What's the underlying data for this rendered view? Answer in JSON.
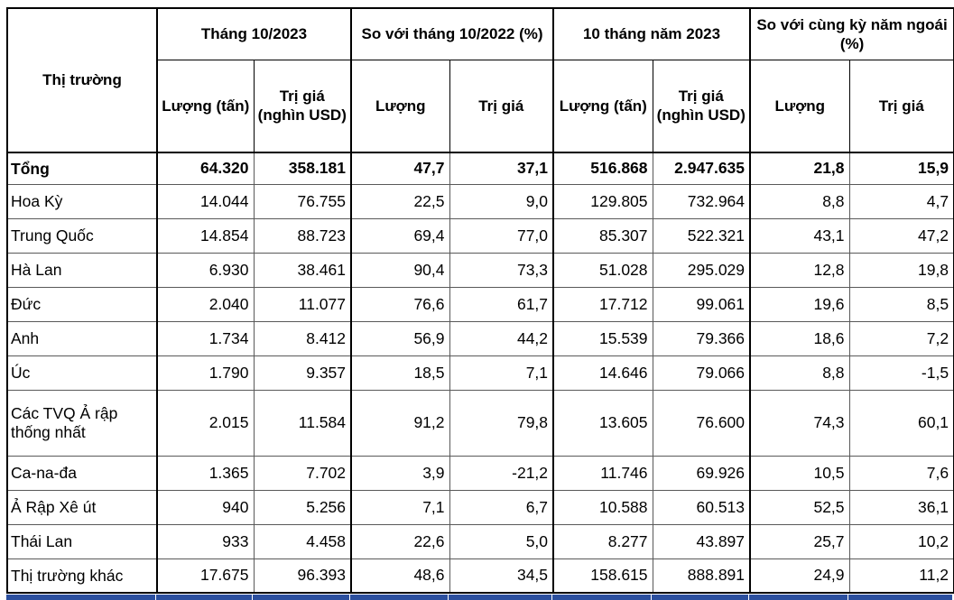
{
  "table": {
    "header": {
      "market_label": "Thị trường",
      "groups": [
        {
          "label": "Tháng 10/2023",
          "cols": [
            "Lượng (tấn)",
            "Trị giá (nghìn USD)"
          ]
        },
        {
          "label": "So với tháng 10/2022 (%)",
          "cols": [
            "Lượng",
            "Trị giá"
          ]
        },
        {
          "label": "10 tháng năm 2023",
          "cols": [
            "Lượng (tấn)",
            "Trị giá (nghìn USD)"
          ]
        },
        {
          "label": "So với cùng kỳ năm ngoái (%)",
          "cols": [
            "Lượng",
            "Trị giá"
          ]
        }
      ]
    },
    "rows": [
      {
        "market": "Tổng",
        "bold": true,
        "tall": false,
        "values": [
          "64.320",
          "358.181",
          "47,7",
          "37,1",
          "516.868",
          "2.947.635",
          "21,8",
          "15,9"
        ]
      },
      {
        "market": "Hoa Kỳ",
        "bold": false,
        "tall": false,
        "values": [
          "14.044",
          "76.755",
          "22,5",
          "9,0",
          "129.805",
          "732.964",
          "8,8",
          "4,7"
        ]
      },
      {
        "market": "Trung Quốc",
        "bold": false,
        "tall": false,
        "values": [
          "14.854",
          "88.723",
          "69,4",
          "77,0",
          "85.307",
          "522.321",
          "43,1",
          "47,2"
        ]
      },
      {
        "market": "Hà Lan",
        "bold": false,
        "tall": false,
        "values": [
          "6.930",
          "38.461",
          "90,4",
          "73,3",
          "51.028",
          "295.029",
          "12,8",
          "19,8"
        ]
      },
      {
        "market": "Đức",
        "bold": false,
        "tall": false,
        "values": [
          "2.040",
          "11.077",
          "76,6",
          "61,7",
          "17.712",
          "99.061",
          "19,6",
          "8,5"
        ]
      },
      {
        "market": "Anh",
        "bold": false,
        "tall": false,
        "values": [
          "1.734",
          "8.412",
          "56,9",
          "44,2",
          "15.539",
          "79.366",
          "18,6",
          "7,2"
        ]
      },
      {
        "market": "Úc",
        "bold": false,
        "tall": false,
        "values": [
          "1.790",
          "9.357",
          "18,5",
          "7,1",
          "14.646",
          "79.066",
          "8,8",
          "-1,5"
        ]
      },
      {
        "market": "Các TVQ Ả rập thống nhất",
        "bold": false,
        "tall": true,
        "values": [
          "2.015",
          "11.584",
          "91,2",
          "79,8",
          "13.605",
          "76.600",
          "74,3",
          "60,1"
        ]
      },
      {
        "market": "Ca-na-đa",
        "bold": false,
        "tall": false,
        "values": [
          "1.365",
          "7.702",
          "3,9",
          "-21,2",
          "11.746",
          "69.926",
          "10,5",
          "7,6"
        ]
      },
      {
        "market": "Ả Rập Xê út",
        "bold": false,
        "tall": false,
        "values": [
          "940",
          "5.256",
          "7,1",
          "6,7",
          "10.588",
          "60.513",
          "52,5",
          "36,1"
        ]
      },
      {
        "market": "Thái Lan",
        "bold": false,
        "tall": false,
        "values": [
          "933",
          "4.458",
          "22,6",
          "5,0",
          "8.277",
          "43.897",
          "25,7",
          "10,2"
        ]
      },
      {
        "market": "Thị trường khác",
        "bold": false,
        "tall": false,
        "values": [
          "17.675",
          "96.393",
          "48,6",
          "34,5",
          "158.615",
          "888.891",
          "24,9",
          "11,2"
        ]
      }
    ],
    "next_row_color": "#2b4f9e"
  }
}
